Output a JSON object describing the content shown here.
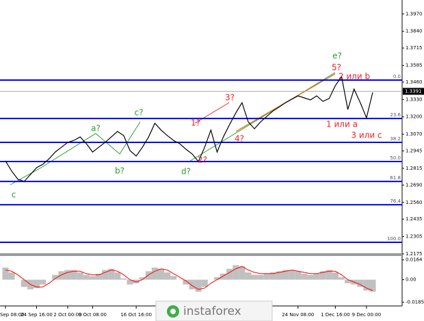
{
  "chart_data": {
    "type": "line",
    "categories": [
      "Sep 08:00",
      null,
      null,
      null,
      null,
      "24 Sep 16:00",
      null,
      null,
      null,
      null,
      "2 Oct 00:00",
      null,
      null,
      null,
      "9 Oct 08:00",
      null,
      null,
      null,
      null,
      null,
      null,
      "16 Oct 16:00",
      null,
      null,
      null,
      null,
      null,
      null,
      null,
      null,
      null,
      null,
      null,
      null,
      null,
      null,
      null,
      null,
      null,
      null,
      null,
      null,
      null,
      null,
      null,
      null,
      null,
      "24 Nov 08:00",
      null,
      null,
      null,
      null,
      null,
      "1 Dec 16:00",
      null,
      null,
      null,
      null,
      "9 Dec 00:00",
      null
    ],
    "series": [
      {
        "color": "#000000",
        "values": [
          1.2871,
          1.2794,
          1.2733,
          1.2717,
          1.2768,
          1.282,
          1.2845,
          1.2886,
          1.2937,
          1.2973,
          1.3009,
          1.3024,
          1.305,
          1.2999,
          1.2937,
          1.2973,
          1.3009,
          1.305,
          1.3091,
          1.306,
          1.2948,
          1.2907,
          1.2973,
          1.305,
          1.3152,
          1.3101,
          1.306,
          1.3024,
          1.2999,
          1.2958,
          1.2922,
          1.2866,
          1.2973,
          1.3101,
          1.2937,
          1.305,
          1.3142,
          1.3229,
          1.3306,
          1.3163,
          1.3111,
          1.3163,
          1.3204,
          1.3245,
          1.3275,
          1.3306,
          1.3332,
          1.3357,
          1.3342,
          1.3327,
          1.3357,
          1.3316,
          1.3337,
          1.3434,
          1.3501,
          1.3255,
          1.3408,
          1.3306,
          1.3193,
          1.3383
        ]
      }
    ],
    "ylim": [
      1.218,
      1.4074
    ],
    "yticks": [
      {
        "value": 1.397,
        "label": "1.3970"
      },
      {
        "value": 1.384,
        "label": "1.3840"
      },
      1.3715,
      1.3585,
      {
        "value": 1.346,
        "label": "1.3460"
      },
      {
        "value": 1.333,
        "label": "1.3330"
      },
      {
        "value": 1.32,
        "label": "1.3200"
      },
      {
        "value": 1.307,
        "label": "1.3070"
      },
      1.2945,
      1.2815,
      {
        "value": 1.269,
        "label": "1.2690"
      },
      {
        "value": 1.256,
        "label": "1.2560"
      },
      1.2435,
      1.2305,
      1.2175
    ],
    "last_price": 1.3391,
    "fib_levels": [
      {
        "value": 1.3475,
        "label": "0.0"
      },
      {
        "value": 1.3188,
        "label": "23.6"
      },
      {
        "value": 1.3009,
        "label": "38.2"
      },
      {
        "value": 1.2866,
        "label": "50.0"
      },
      {
        "value": 1.2717,
        "label": "61.8"
      },
      {
        "value": 1.2543,
        "label": "76.4"
      },
      {
        "value": 1.2262,
        "label": "100.0"
      }
    ],
    "fib_color": "#0000ff",
    "annotations": [
      {
        "text": "c",
        "color": "#2e9b2e"
      },
      {
        "text": "a?",
        "color": "#2e9b2e"
      },
      {
        "text": "b?",
        "color": "#2e9b2e"
      },
      {
        "text": "c?",
        "color": "#2e9b2e"
      },
      {
        "text": "d?",
        "color": "#2e9b2e"
      },
      {
        "text": "e?",
        "color": "#2e9b2e"
      },
      {
        "text": "1?",
        "color": "#f02020"
      },
      {
        "text": "2?",
        "color": "#f02020"
      },
      {
        "text": "3?",
        "color": "#f02020"
      },
      {
        "text": "4?",
        "color": "#f02020"
      },
      {
        "text": "5?",
        "color": "#f02020"
      },
      {
        "text": "2 или b",
        "color": "#f02020"
      },
      {
        "text": "1 или a",
        "color": "#f02020"
      },
      {
        "text": "3 или c",
        "color": "#f02020"
      }
    ],
    "oscillator": {
      "ylim": [
        -0.0195,
        0.0185
      ],
      "yticks": [
        0.0164,
        {
          "value": 0,
          "label": "0.00"
        },
        -0.01859
      ],
      "histogram": {
        "color": "#c0c0c0",
        "values": [
          0.01,
          0.006,
          0.0,
          -0.006,
          -0.008,
          -0.007,
          -0.004,
          0.0,
          0.004,
          0.007,
          0.008,
          0.008,
          0.006,
          0.004,
          0.003,
          0.005,
          0.008,
          0.009,
          0.006,
          0.001,
          -0.004,
          -0.003,
          0.002,
          0.007,
          0.01,
          0.009,
          0.006,
          0.003,
          0.0,
          -0.004,
          -0.008,
          -0.01,
          -0.006,
          0.0,
          0.002,
          0.005,
          0.009,
          0.012,
          0.011,
          0.006,
          0.004,
          0.004,
          0.005,
          0.006,
          0.007,
          0.008,
          0.008,
          0.007,
          0.005,
          0.004,
          0.005,
          0.007,
          0.008,
          0.006,
          0.002,
          -0.003,
          -0.004,
          -0.006,
          -0.009,
          -0.01
        ]
      },
      "signal": {
        "color": "#ff0000",
        "values": [
          0.008,
          0.007,
          0.004,
          0.0,
          -0.004,
          -0.006,
          -0.006,
          -0.003,
          0.001,
          0.004,
          0.006,
          0.007,
          0.007,
          0.005,
          0.004,
          0.004,
          0.006,
          0.008,
          0.007,
          0.004,
          0.0,
          -0.002,
          0.0,
          0.004,
          0.007,
          0.009,
          0.008,
          0.005,
          0.002,
          -0.001,
          -0.005,
          -0.008,
          -0.007,
          -0.003,
          0.0,
          0.003,
          0.006,
          0.009,
          0.011,
          0.008,
          0.006,
          0.005,
          0.005,
          0.005,
          0.006,
          0.007,
          0.008,
          0.007,
          0.006,
          0.005,
          0.005,
          0.006,
          0.007,
          0.007,
          0.004,
          0.0,
          -0.002,
          -0.004,
          -0.007,
          -0.009
        ]
      }
    },
    "watermark": "instaforex"
  }
}
